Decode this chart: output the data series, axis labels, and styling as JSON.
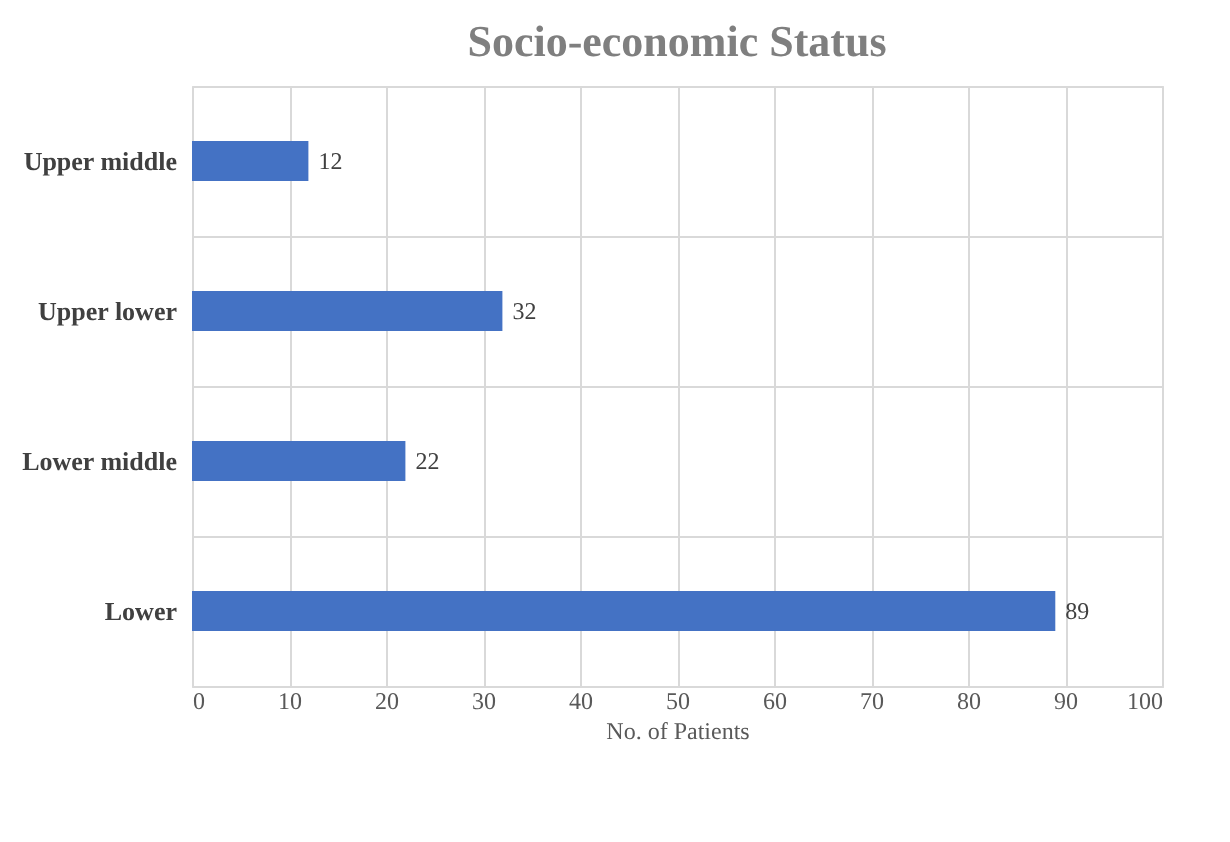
{
  "chart_data": {
    "type": "bar",
    "orientation": "horizontal",
    "title": "Socio-economic Status",
    "xlabel": "No. of Patients",
    "categories": [
      "Upper middle",
      "Upper lower",
      "Lower middle",
      "Lower"
    ],
    "values": [
      12,
      32,
      22,
      89
    ],
    "color": "#4472c4",
    "xlim": [
      0,
      100
    ],
    "xticks": [
      0,
      10,
      20,
      30,
      40,
      50,
      60,
      70,
      80,
      90,
      100
    ],
    "grid": true,
    "data_labels": true
  }
}
